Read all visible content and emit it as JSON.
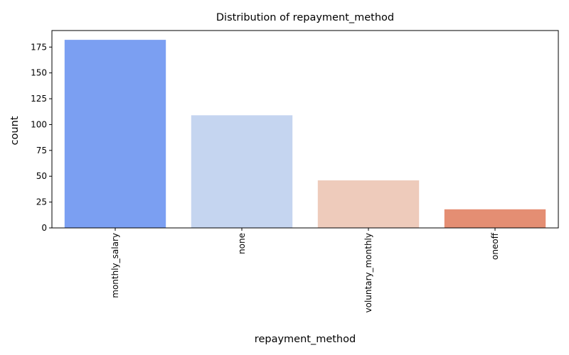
{
  "chart_data": {
    "type": "bar",
    "title": "Distribution of repayment_method",
    "xlabel": "repayment_method",
    "ylabel": "count",
    "categories": [
      "monthly_salary",
      "none",
      "voluntary_monthly",
      "oneoff"
    ],
    "values": [
      182,
      109,
      46,
      18
    ],
    "colors": [
      "#7b9ff2",
      "#c5d5f0",
      "#eecbbb",
      "#e48e73"
    ],
    "ylim": [
      0,
      191
    ],
    "yticks": [
      0,
      25,
      50,
      75,
      100,
      125,
      150,
      175
    ],
    "grid": false,
    "legend": "none"
  }
}
